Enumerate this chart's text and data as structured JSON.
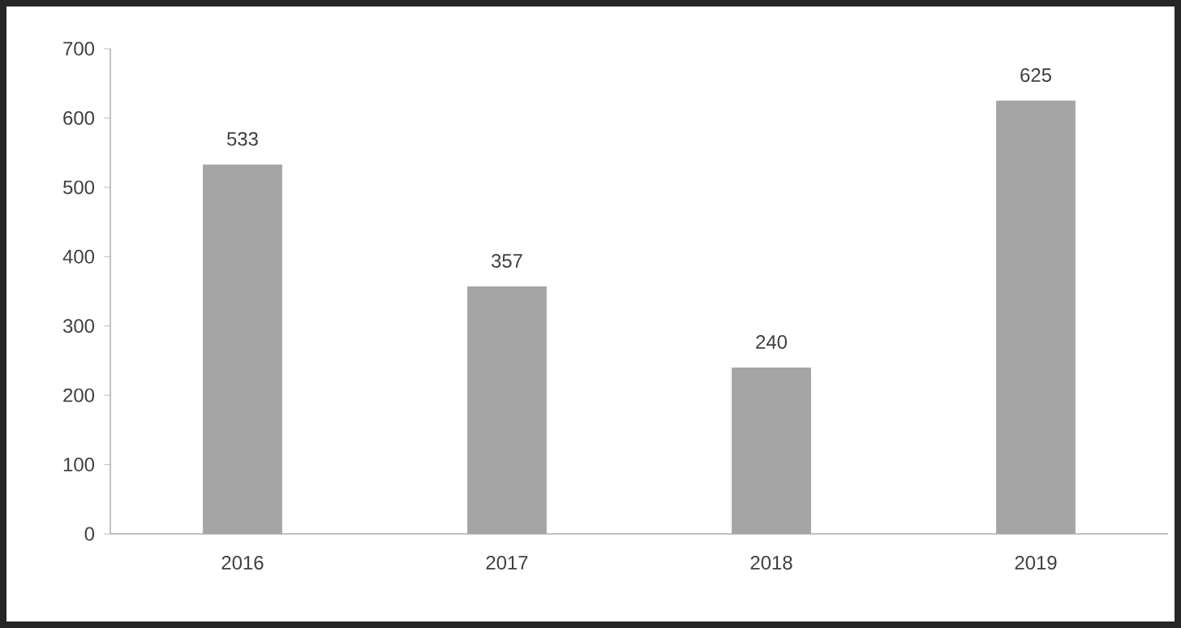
{
  "chart_data": {
    "type": "bar",
    "categories": [
      "2016",
      "2017",
      "2018",
      "2019"
    ],
    "values": [
      533,
      357,
      240,
      625
    ],
    "color": "#a5a5a5",
    "ylim": [
      0,
      700
    ],
    "yticks": [
      0,
      100,
      200,
      300,
      400,
      500,
      600,
      700
    ],
    "data_labels": true,
    "grid": false
  }
}
